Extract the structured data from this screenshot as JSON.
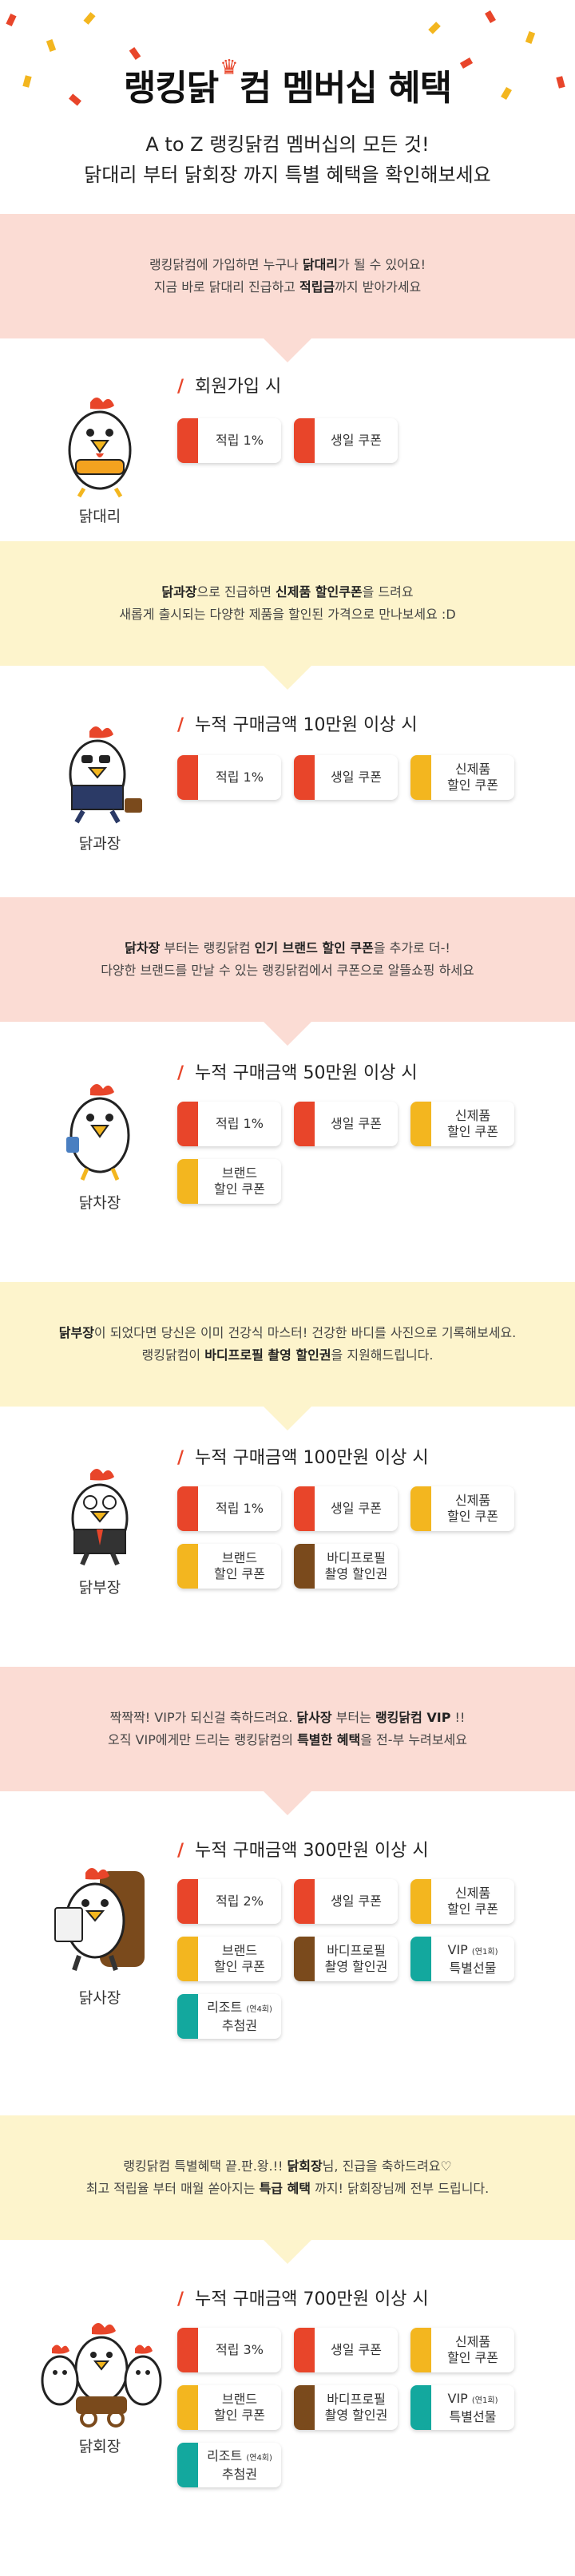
{
  "hero": {
    "title_part1": "랭킹닭",
    "title_part2": "컴 멤버십 혜택",
    "sub_line1": "A to Z 랭킹닭컴 멤버십의 모든 것!",
    "sub_line2": "닭대리 부터 닭회장 까지 특별 혜택을 확인해보세요"
  },
  "colors": {
    "red": "#e8452a",
    "yellow": "#f3b61f",
    "brown": "#7a4a1c",
    "teal": "#13a89e",
    "pink_bg": "#fbdcd4",
    "yellow_bg": "#fdf4cc"
  },
  "badges": {
    "point1": "적립 1%",
    "point2": "적립 2%",
    "point3": "적립 3%",
    "birthday": "생일 쿠폰",
    "new1": "신제품",
    "new2": "할인 쿠폰",
    "brand1": "브랜드",
    "brand2": "할인 쿠폰",
    "body1": "바디프로필",
    "body2": "촬영 할인권",
    "vip1": "VIP",
    "vip_note": "(연1회)",
    "vip2": "특별선물",
    "resort1": "리조트",
    "resort_note": "(연4회)",
    "resort2": "추첨권"
  },
  "tiers": {
    "t1": {
      "banner1_a": "랭킹닭컴에 가입하면 누구나 ",
      "banner1_b": "닭대리",
      "banner1_c": "가 될 수 있어요!",
      "banner2_a": "지금 바로 닭대리 진급하고 ",
      "banner2_b": "적립금",
      "banner2_c": "까지 받아가세요",
      "condition": "회원가입 시",
      "name": "닭대리"
    },
    "t2": {
      "banner1_a": "닭과장",
      "banner1_b": "으로 진급하면 ",
      "banner1_c": "신제품 할인쿠폰",
      "banner1_d": "을 드려요",
      "banner2": "새롭게 출시되는 다양한 제품을 할인된 가격으로 만나보세요 :D",
      "condition": "누적 구매금액 10만원 이상 시",
      "name": "닭과장"
    },
    "t3": {
      "banner1_a": "닭차장",
      "banner1_b": " 부터는 랭킹닭컴 ",
      "banner1_c": "인기 브랜드 할인 쿠폰",
      "banner1_d": "을 추가로 더-!",
      "banner2": "다양한 브랜드를 만날 수 있는 랭킹닭컴에서 쿠폰으로 알뜰쇼핑 하세요",
      "condition": "누적 구매금액 50만원 이상 시",
      "name": "닭차장"
    },
    "t4": {
      "banner1_a": "닭부장",
      "banner1_b": "이 되었다면 당신은 이미 건강식 마스터! 건강한 바디를 사진으로 기록해보세요.",
      "banner2_a": "랭킹닭컴이 ",
      "banner2_b": "바디프로필 촬영 할인권",
      "banner2_c": "을 지원해드립니다.",
      "condition": "누적 구매금액 100만원 이상 시",
      "name": "닭부장"
    },
    "t5": {
      "banner1_a": "짝짝짝! VIP가 되신걸 축하드려요. ",
      "banner1_b": "닭사장",
      "banner1_c": " 부터는 ",
      "banner1_d": "랭킹닭컴 VIP",
      "banner1_e": " !!",
      "banner2_a": "오직 VIP에게만 드리는 랭킹닭컴의 ",
      "banner2_b": "특별한 혜택",
      "banner2_c": "을 전-부 누려보세요",
      "condition": "누적 구매금액 300만원 이상 시",
      "name": "닭사장"
    },
    "t6": {
      "banner1_a": "랭킹닭컴 특별혜택 끝.판.왕.!! ",
      "banner1_b": "닭회장",
      "banner1_c": "님, 진급을 축하드려요♡",
      "banner2_a": "최고 적립율 부터 매월 쏟아지는 ",
      "banner2_b": "특급 혜택",
      "banner2_c": " 까지! 닭회장님께 전부 드립니다.",
      "condition": "누적 구매금액 700만원 이상 시",
      "name": "닭회장"
    }
  }
}
